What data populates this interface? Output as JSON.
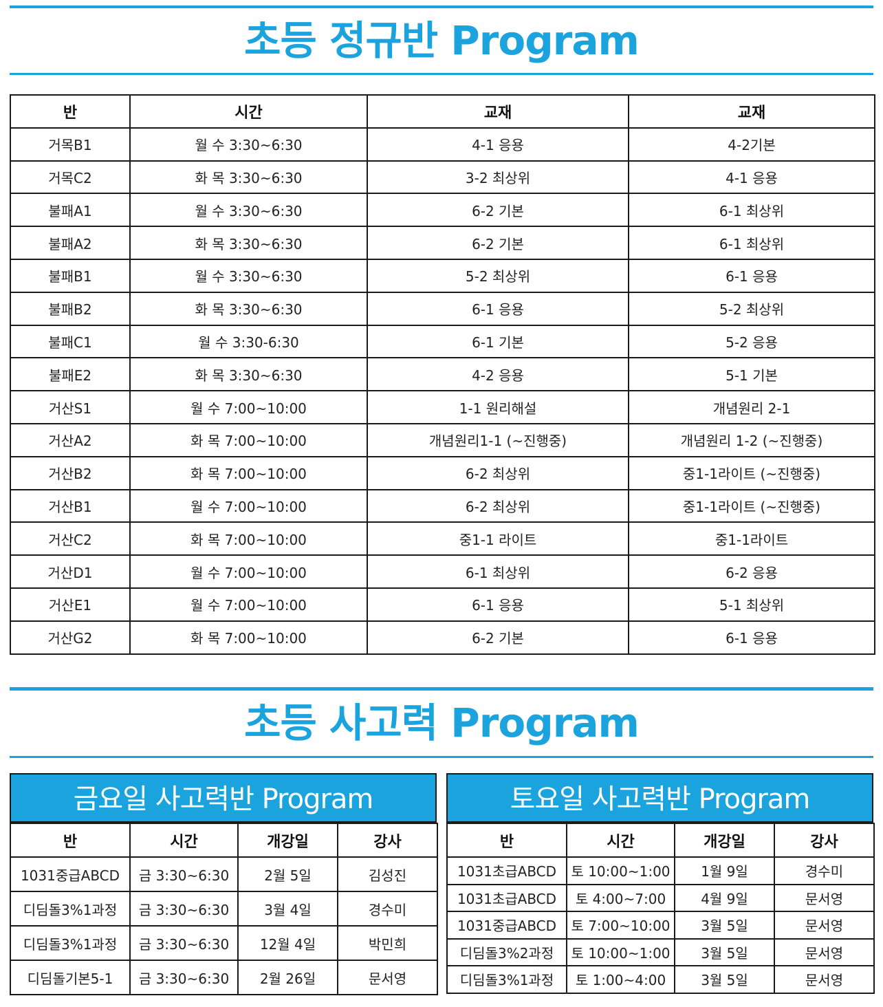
{
  "regular": {
    "title": "초등 정규반 Program",
    "headers": [
      "반",
      "시간",
      "교재",
      "교재"
    ],
    "rows": [
      [
        "거목B1",
        "월 수 3:30~6:30",
        "4-1 응용",
        "4-2기본"
      ],
      [
        "거목C2",
        "화 목 3:30~6:30",
        "3-2 최상위",
        "4-1 응용"
      ],
      [
        "불패A1",
        "월 수 3:30~6:30",
        "6-2 기본",
        "6-1 최상위"
      ],
      [
        "불패A2",
        "화 목 3:30~6:30",
        "6-2 기본",
        "6-1 최상위"
      ],
      [
        "불패B1",
        "월 수 3:30~6:30",
        "5-2 최상위",
        "6-1 응용"
      ],
      [
        "불패B2",
        "화 목 3:30~6:30",
        "6-1 응용",
        "5-2 최상위"
      ],
      [
        "불패C1",
        "월 수 3:30-6:30",
        "6-1 기본",
        "5-2 응용"
      ],
      [
        "불패E2",
        "화 목 3:30~6:30",
        "4-2 응용",
        "5-1 기본"
      ],
      [
        "거산S1",
        "월 수 7:00~10:00",
        "1-1 원리해설",
        "개념원리 2-1"
      ],
      [
        "거산A2",
        "화 목 7:00~10:00",
        "개념원리1-1 (~진행중)",
        "개념원리 1-2 (~진행중)"
      ],
      [
        "거산B2",
        "화 목 7:00~10:00",
        "6-2 최상위",
        "중1-1라이트 (~진행중)"
      ],
      [
        "거산B1",
        "월 수 7:00~10:00",
        "6-2 최상위",
        "중1-1라이트 (~진행중)"
      ],
      [
        "거산C2",
        "화 목 7:00~10:00",
        "중1-1 라이트",
        "중1-1라이트"
      ],
      [
        "거산D1",
        "월 수 7:00~10:00",
        "6-1 최상위",
        "6-2 응용"
      ],
      [
        "거산E1",
        "월 수 7:00~10:00",
        "6-1 응용",
        "5-1 최상위"
      ],
      [
        "거산G2",
        "화 목 7:00~10:00",
        "6-2 기본",
        "6-1 응용"
      ]
    ]
  },
  "thinking": {
    "title": "초등 사고력 Program",
    "friday": {
      "title": "금요일 사고력반 Program",
      "headers": [
        "반",
        "시간",
        "개강일",
        "강사"
      ],
      "rows": [
        [
          "1031중급ABCD",
          "금 3:30~6:30",
          "2월 5일",
          "김성진"
        ],
        [
          "디딤돌3%1과정",
          "금 3:30~6:30",
          "3월 4일",
          "경수미"
        ],
        [
          "디딤돌3%1과정",
          "금 3:30~6:30",
          "12월 4일",
          "박민희"
        ],
        [
          "디딤돌기본5-1",
          "금 3:30~6:30",
          "2월 26일",
          "문서영"
        ]
      ]
    },
    "saturday": {
      "title": "토요일 사고력반 Program",
      "headers": [
        "반",
        "시간",
        "개강일",
        "강사"
      ],
      "rows": [
        [
          "1031초급ABCD",
          "토 10:00~1:00",
          "1월 9일",
          "경수미"
        ],
        [
          "1031초급ABCD",
          "토 4:00~7:00",
          "4월 9일",
          "문서영"
        ],
        [
          "1031중급ABCD",
          "토 7:00~10:00",
          "3월 5일",
          "문서영"
        ],
        [
          "디딤돌3%2과정",
          "토 10:00~1:00",
          "3월 5일",
          "문서영"
        ],
        [
          "디딤돌3%1과정",
          "토 1:00~4:00",
          "3월 5일",
          "문서영"
        ]
      ]
    }
  }
}
